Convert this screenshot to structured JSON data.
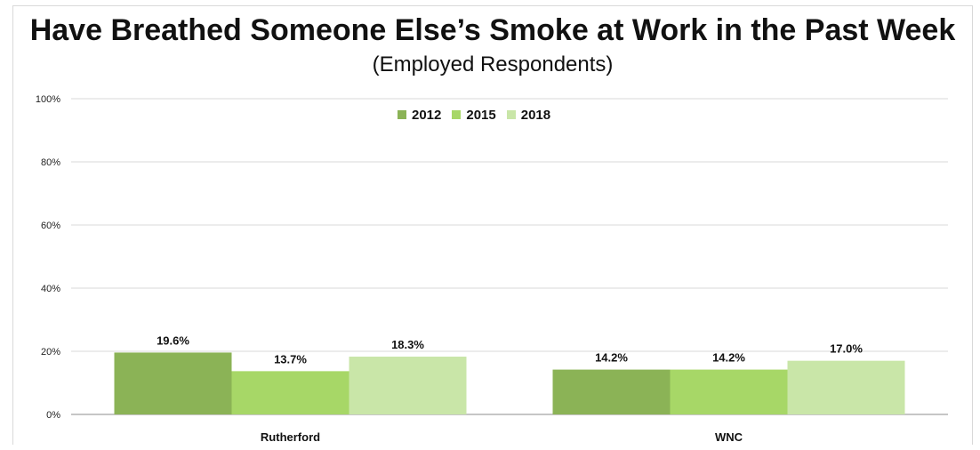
{
  "colors": {
    "series_2012": "#8bb356",
    "series_2015": "#a7d767",
    "series_2018": "#c9e6a8",
    "gridline": "#d9d9d9",
    "axis": "#8c8c8c"
  },
  "chart_data": {
    "type": "bar",
    "title": "Have Breathed Someone Else’s Smoke at Work in the Past Week",
    "subtitle": "(Employed Respondents)",
    "categories": [
      "Rutherford",
      "WNC"
    ],
    "series": [
      {
        "name": "2012",
        "values": [
          19.6,
          14.2
        ],
        "labels": [
          "19.6%",
          "14.2%"
        ]
      },
      {
        "name": "2015",
        "values": [
          13.7,
          14.2
        ],
        "labels": [
          "13.7%",
          "14.2%"
        ]
      },
      {
        "name": "2018",
        "values": [
          18.3,
          17.0
        ],
        "labels": [
          "18.3%",
          "17.0%"
        ]
      }
    ],
    "y_ticks": [
      0,
      20,
      40,
      60,
      80,
      100
    ],
    "y_tick_labels": [
      "0%",
      "20%",
      "40%",
      "60%",
      "80%",
      "100%"
    ],
    "ylim": [
      0,
      100
    ],
    "grid": true,
    "legend_position": "top-center"
  }
}
